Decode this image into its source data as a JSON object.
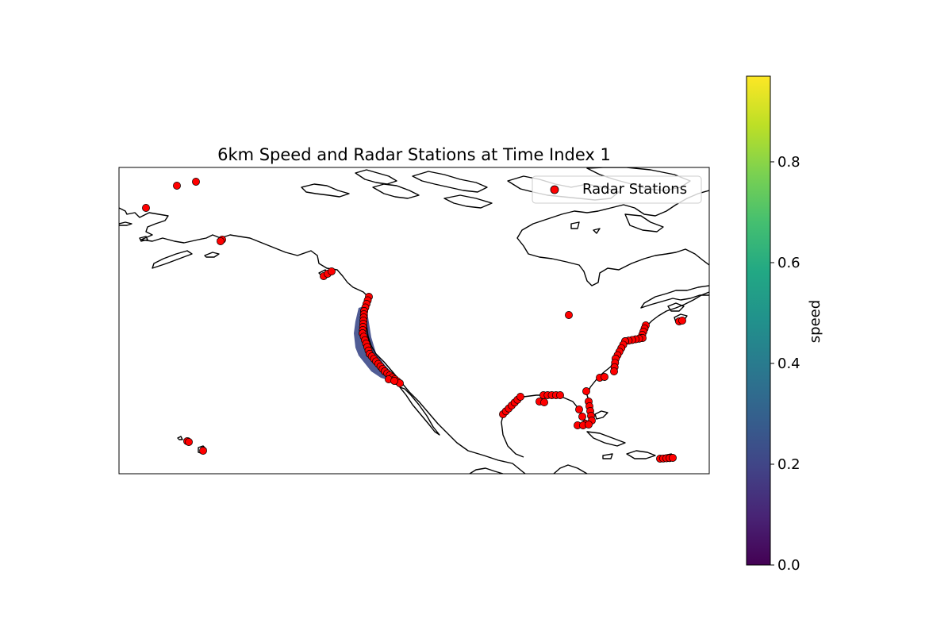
{
  "title": "6km Speed and Radar Stations at Time Index 1",
  "legend": {
    "label": "Radar Stations",
    "marker_color": "#ff0000",
    "placement": "upper-right"
  },
  "colorbar": {
    "label": "speed",
    "colormap": "viridis",
    "range": [
      0.0,
      0.97
    ],
    "ticks": [
      "0.0",
      "0.2",
      "0.4",
      "0.6",
      "0.8"
    ],
    "colors": [
      "#440154",
      "#482475",
      "#414487",
      "#355f8d",
      "#2a788e",
      "#21918c",
      "#22a884",
      "#44bf70",
      "#7ad151",
      "#bddf26",
      "#fde725"
    ]
  },
  "colors": {
    "station_fill": "#ff0000",
    "station_edge": "#000000",
    "coastline": "#000000",
    "speed_field": "#3d4a8a"
  },
  "map": {
    "region": "North America",
    "projection": "PlateCarree",
    "features": [
      "coastlines",
      "radar station markers",
      "surface current speed field off the US west coast"
    ]
  }
}
